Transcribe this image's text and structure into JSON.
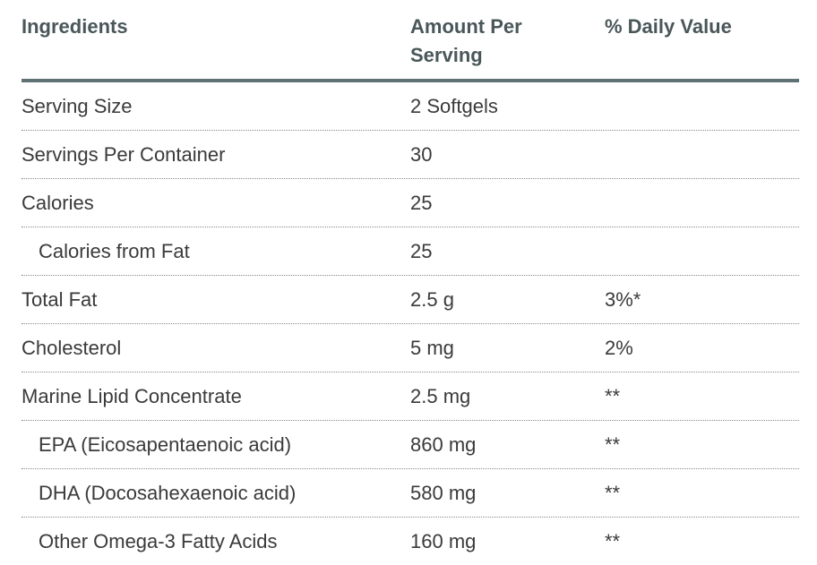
{
  "table": {
    "columns": [
      "Ingredients",
      "Amount Per Serving",
      "% Daily Value"
    ],
    "rows": [
      [
        "Serving Size",
        "2 Softgels"
      ],
      [
        "Servings Per Container",
        "30"
      ],
      [
        "Calories",
        "25"
      ],
      [
        "Calories from Fat",
        "25"
      ],
      [
        "Total Fat",
        "2.5 g",
        "3%*"
      ],
      [
        "Cholesterol",
        "5 mg",
        "2%"
      ],
      [
        "Marine Lipid Concentrate",
        "2.5 mg",
        "**"
      ],
      [
        "EPA (Eicosapentaenoic acid)",
        "860 mg",
        "**"
      ],
      [
        "DHA (Docosahexaenoic acid)",
        "580 mg",
        "**"
      ],
      [
        "Other Omega-3 Fatty Acids",
        "160 mg",
        "**"
      ]
    ]
  }
}
